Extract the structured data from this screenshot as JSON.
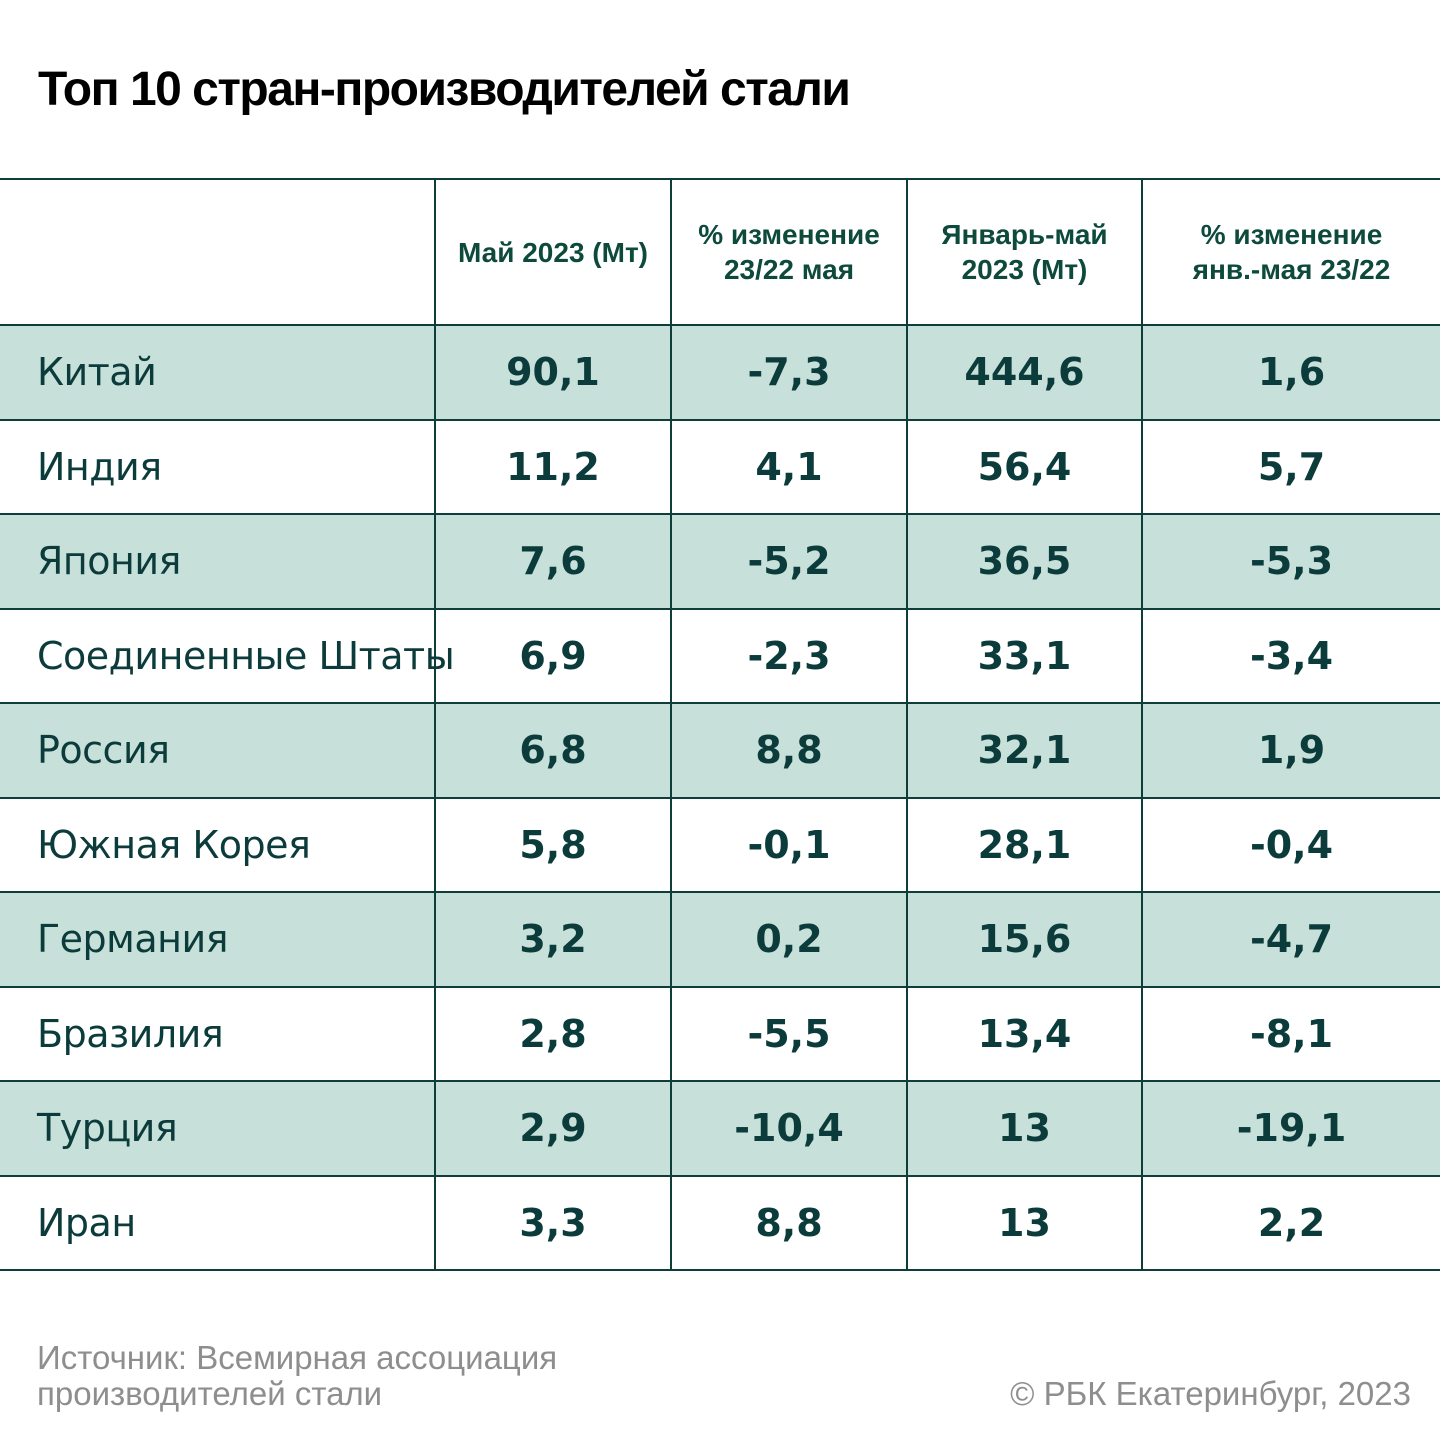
{
  "title": "Топ 10 стран-производителей стали",
  "chart_data": {
    "type": "table",
    "title": "Топ 10 стран-производителей стали",
    "columns": [
      "",
      "Май 2023 (Мт)",
      "% изменение 23/22 мая",
      "Январь-май 2023 (Мт)",
      "% изменение янв.-мая 23/22"
    ],
    "header_lines": [
      [],
      [
        "Май 2023 (Мт)"
      ],
      [
        "% изменение",
        "23/22 мая"
      ],
      [
        "Январь-май",
        "2023 (Мт)"
      ],
      [
        "% изменение",
        "янв.-мая 23/22"
      ]
    ],
    "rows": [
      {
        "country": "Китай",
        "may": "90,1",
        "may_change": "-7,3",
        "jan_may": "444,6",
        "jan_may_change": "1,6"
      },
      {
        "country": "Индия",
        "may": "11,2",
        "may_change": "4,1",
        "jan_may": "56,4",
        "jan_may_change": "5,7"
      },
      {
        "country": "Япония",
        "may": "7,6",
        "may_change": "-5,2",
        "jan_may": "36,5",
        "jan_may_change": "-5,3"
      },
      {
        "country": "Соединенные Штаты",
        "may": "6,9",
        "may_change": "-2,3",
        "jan_may": "33,1",
        "jan_may_change": "-3,4"
      },
      {
        "country": "Россия",
        "may": "6,8",
        "may_change": "8,8",
        "jan_may": "32,1",
        "jan_may_change": "1,9"
      },
      {
        "country": "Южная Корея",
        "may": "5,8",
        "may_change": "-0,1",
        "jan_may": "28,1",
        "jan_may_change": "-0,4"
      },
      {
        "country": "Германия",
        "may": "3,2",
        "may_change": "0,2",
        "jan_may": "15,6",
        "jan_may_change": "-4,7"
      },
      {
        "country": "Бразилия",
        "may": "2,8",
        "may_change": "-5,5",
        "jan_may": "13,4",
        "jan_may_change": "-8,1"
      },
      {
        "country": "Турция",
        "may": "2,9",
        "may_change": "-10,4",
        "jan_may": "13",
        "jan_may_change": "-19,1"
      },
      {
        "country": "Иран",
        "may": "3,3",
        "may_change": "8,8",
        "jan_may": "13",
        "jan_may_change": "2,2"
      }
    ]
  },
  "footer": {
    "source_line1": "Источник: Всемирная ассоциация",
    "source_line2": "производителей стали",
    "copyright": "© РБК Екатеринбург, 2023"
  },
  "colors": {
    "shade": "#c7e0d9",
    "header_text": "#0e4a3c",
    "cell_text": "#0b3b3a",
    "border": "#0f3d3a",
    "footer_text": "#8e8e8e"
  }
}
